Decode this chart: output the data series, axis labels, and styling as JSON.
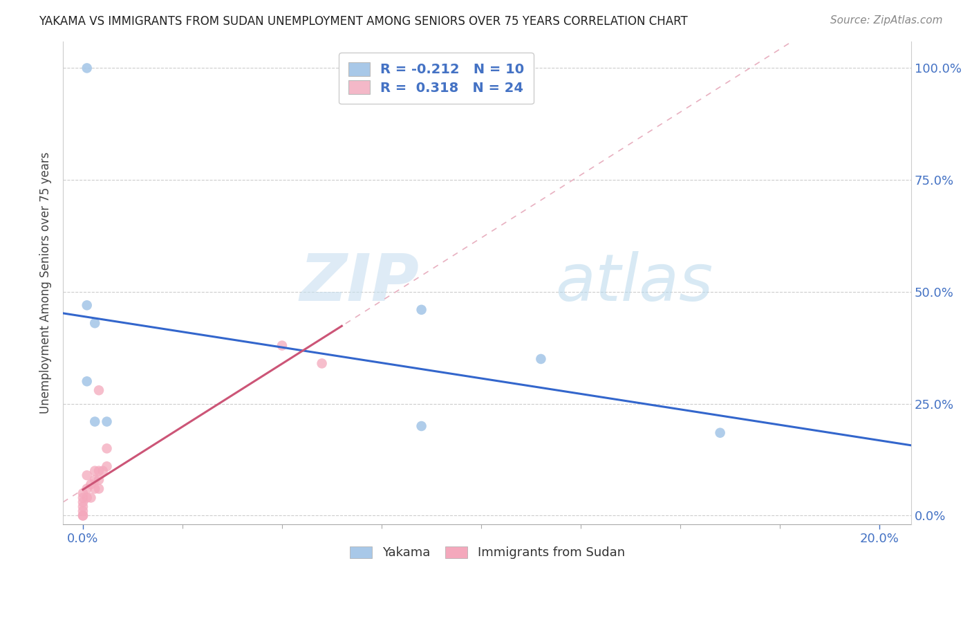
{
  "title": "YAKAMA VS IMMIGRANTS FROM SUDAN UNEMPLOYMENT AMONG SENIORS OVER 75 YEARS CORRELATION CHART",
  "source": "Source: ZipAtlas.com",
  "ylabel": "Unemployment Among Seniors over 75 years",
  "xlim": [
    -0.005,
    0.208
  ],
  "ylim": [
    -0.02,
    1.06
  ],
  "xlabel_vals": [
    0.0,
    0.2
  ],
  "xlabel_ticks": [
    "0.0%",
    "20.0%"
  ],
  "ylabel_vals": [
    0.0,
    0.25,
    0.5,
    0.75,
    1.0
  ],
  "ylabel_ticks": [
    "0.0%",
    "25.0%",
    "50.0%",
    "75.0%",
    "100.0%"
  ],
  "yakama_x": [
    0.001,
    0.001,
    0.003,
    0.003,
    0.006,
    0.085,
    0.085,
    0.115,
    0.16,
    0.001
  ],
  "yakama_y": [
    0.3,
    0.47,
    0.43,
    0.21,
    0.21,
    0.46,
    0.2,
    0.35,
    0.185,
    1.0
  ],
  "sudan_x": [
    0.0,
    0.0,
    0.0,
    0.0,
    0.0,
    0.0,
    0.0,
    0.001,
    0.001,
    0.001,
    0.002,
    0.002,
    0.003,
    0.003,
    0.003,
    0.004,
    0.004,
    0.004,
    0.004,
    0.005,
    0.006,
    0.006,
    0.05,
    0.06
  ],
  "sudan_y": [
    0.0,
    0.0,
    0.01,
    0.02,
    0.03,
    0.04,
    0.05,
    0.04,
    0.06,
    0.09,
    0.04,
    0.07,
    0.06,
    0.08,
    0.1,
    0.06,
    0.08,
    0.1,
    0.28,
    0.1,
    0.11,
    0.15,
    0.38,
    0.34
  ],
  "yakama_color": "#a8c8e8",
  "sudan_color": "#f4a8bc",
  "yakama_line_color": "#3366cc",
  "sudan_solid_color": "#cc5577",
  "sudan_dash_color": "#e8b0c0",
  "legend_yakama_color": "#a8c8e8",
  "legend_sudan_color": "#f4b8c8",
  "R_yakama": -0.212,
  "N_yakama": 10,
  "R_sudan": 0.318,
  "N_sudan": 24,
  "watermark_zip": "ZIP",
  "watermark_atlas": "atlas",
  "legend_labels": [
    "Yakama",
    "Immigrants from Sudan"
  ],
  "marker_size": 110,
  "xtick_minor_count": 9
}
